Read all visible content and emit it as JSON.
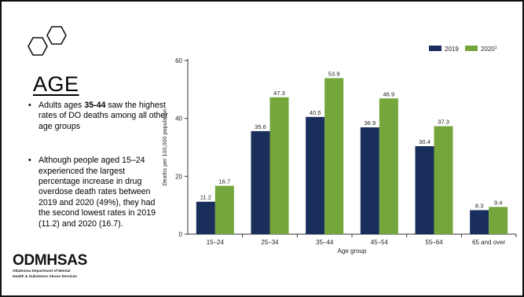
{
  "slide": {
    "title": "AGE",
    "bullet1_pre": "Adults ages ",
    "bullet1_bold": "35-44",
    "bullet1_post": " saw the highest rates of DO deaths among all other age groups",
    "bullet2": "Although people aged 15–24 experienced the largest percentage increase in drug overdose death rates between 2019 and 2020 (49%), they had the second lowest rates in 2019 (11.2) and 2020 (16.7).",
    "brand_name": "ODMHSAS",
    "brand_sub_1": "Oklahoma Department of Mental",
    "brand_sub_2": "Health & Substance Abuse Services",
    "icon": "hexagons-icon"
  },
  "chart_data": {
    "type": "bar",
    "categories": [
      "15–24",
      "25–34",
      "35–44",
      "45–54",
      "55–64",
      "65 and over"
    ],
    "series": [
      {
        "name": "2019",
        "color": "#1a2e5c",
        "values": [
          11.2,
          35.6,
          40.5,
          36.9,
          30.4,
          8.3
        ]
      },
      {
        "name": "2020",
        "name_sup": "1",
        "color": "#74a63c",
        "values": [
          16.7,
          47.3,
          53.9,
          46.9,
          37.3,
          9.4
        ]
      }
    ],
    "value_labels": [
      [
        "11.2",
        "35.6",
        "40.5",
        "36.9",
        "30.4",
        "8.3"
      ],
      [
        "16.7",
        "47.3",
        "53.9",
        "46.9",
        "37.3",
        "9.4"
      ]
    ],
    "yticks": [
      0,
      20,
      40,
      60
    ],
    "ylim": [
      0,
      60
    ],
    "xlabel": "Age group",
    "ylabel": "Deaths per 100,000 population",
    "legend_position": "top-right",
    "grid": false
  }
}
